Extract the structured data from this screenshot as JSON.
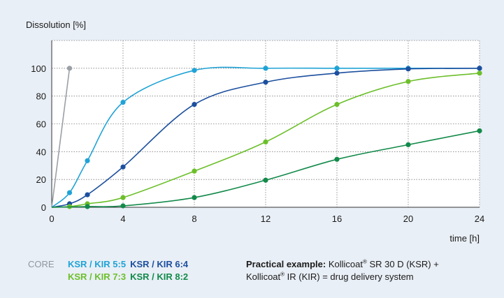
{
  "chart_data": {
    "type": "line",
    "ylabel": "Dissolution [%]",
    "xlabel": "time [h]",
    "xlim": [
      0,
      24
    ],
    "ylim": [
      0,
      120
    ],
    "xticks": [
      0,
      4,
      8,
      12,
      16,
      20,
      24
    ],
    "yticks": [
      0,
      20,
      40,
      60,
      80,
      100
    ],
    "grid": true,
    "legend_position": "bottom",
    "series": [
      {
        "name": "CORE",
        "color": "#9aa0a6",
        "points": [
          [
            0,
            0
          ],
          [
            1,
            100
          ]
        ]
      },
      {
        "name": "KSR / KIR 5:5",
        "color": "#1fa3d6",
        "points": [
          [
            0,
            0
          ],
          [
            1,
            10.5
          ],
          [
            2,
            33.5
          ],
          [
            4,
            75.5
          ],
          [
            8,
            98.5
          ],
          [
            12,
            100
          ],
          [
            16,
            100
          ],
          [
            20,
            100
          ],
          [
            24,
            100
          ]
        ]
      },
      {
        "name": "KSR / KIR 6:4",
        "color": "#1c4f9e",
        "points": [
          [
            0,
            0
          ],
          [
            1,
            2.5
          ],
          [
            2,
            9
          ],
          [
            4,
            29
          ],
          [
            8,
            74
          ],
          [
            12,
            90
          ],
          [
            16,
            96.5
          ],
          [
            20,
            99.5
          ],
          [
            24,
            100
          ]
        ]
      },
      {
        "name": "KSR / KIR 7:3",
        "color": "#6cbf2a",
        "points": [
          [
            0,
            0
          ],
          [
            1,
            0.5
          ],
          [
            2,
            2.5
          ],
          [
            4,
            7
          ],
          [
            8,
            26
          ],
          [
            12,
            47
          ],
          [
            16,
            74
          ],
          [
            20,
            90.5
          ],
          [
            24,
            96.5
          ]
        ]
      },
      {
        "name": "KSR / KIR 8:2",
        "color": "#128a4a",
        "points": [
          [
            0,
            0
          ],
          [
            2,
            0.5
          ],
          [
            4,
            1
          ],
          [
            8,
            7
          ],
          [
            12,
            19.5
          ],
          [
            16,
            34.5
          ],
          [
            20,
            45
          ],
          [
            24,
            55
          ]
        ]
      }
    ]
  },
  "legend": {
    "core": "CORE",
    "row1": [
      {
        "label": "KSR / KIR 5:5",
        "color": "#1fa3d6"
      },
      {
        "label": "KSR / KIR 6:4",
        "color": "#1c4f9e"
      }
    ],
    "row2": [
      {
        "label": "KSR / KIR 7:3",
        "color": "#6cbf2a"
      },
      {
        "label": "KSR / KIR 8:2",
        "color": "#128a4a"
      }
    ]
  },
  "note": {
    "heading": "Practical example:",
    "line1": "Kollicoat",
    "reg": "®",
    "line1_rest": " SR 30 D (KSR) +",
    "line2": "Kollicoat",
    "line2_rest": " IR (KIR) = drug delivery system"
  }
}
